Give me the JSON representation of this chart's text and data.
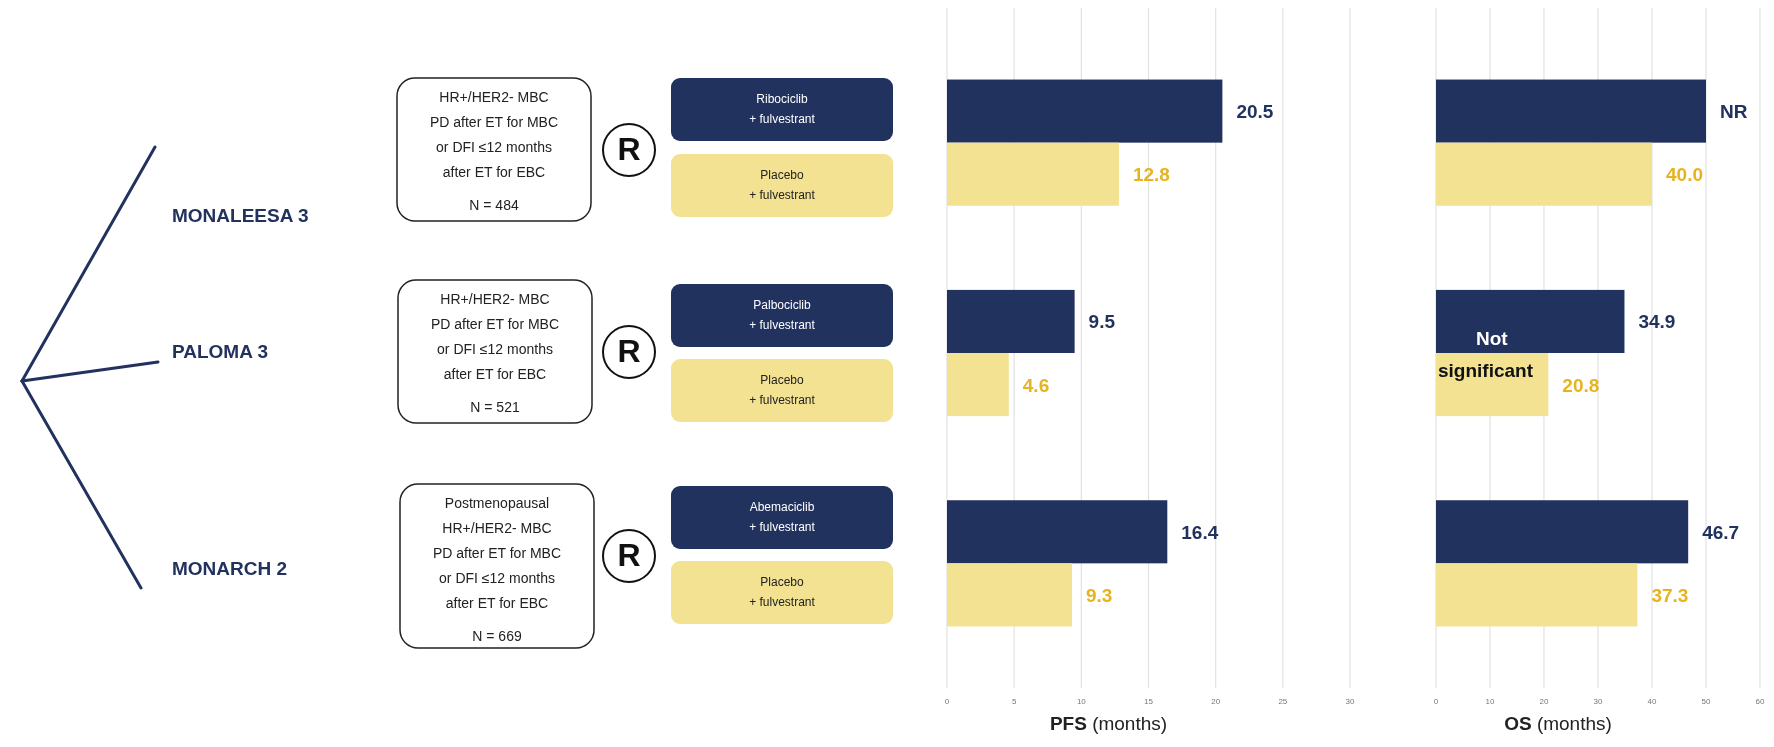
{
  "chart_data": [
    {
      "type": "other",
      "annotations": [
        "MONALEESA 3",
        "PALOMA 3",
        "MONARCH 2",
        "HR+/HER2- MBC\nPD after ET for MBC\nor DFI ≤12 months\nafter ET for EBC\nN = 484",
        "HR+/HER2- MBC\nPD after ET for MBC\nor DFI ≤12 months\nafter ET for EBC\nN = 521",
        "Postmenopausal\nHR+/HER2- MBC\nPD after ET for MBC\nor DFI ≤12 months\nafter ET for EBC\nN = 669",
        "R",
        "R",
        "R",
        "Ribociclib\n+ fulvestrant",
        "Placebo\n+ fulvestrant",
        "Palbociclib\n+ fulvestrant",
        "Placebo\n+ fulvestrant",
        "Abemaciclib\n+ fulvestrant",
        "Placebo\n+ fulvestrant"
      ]
    },
    {
      "type": "bar",
      "orientation": "horizontal",
      "categories": [
        null,
        null,
        null
      ],
      "xlabel": "PFS (months)",
      "xlim": [
        0,
        30
      ],
      "xticks": [
        0,
        5,
        10,
        15,
        20,
        25,
        30
      ],
      "grid": "x",
      "data_labels": true,
      "series": [
        {
          "color": "#22325e",
          "values": [
            20.5,
            9.5,
            16.4
          ]
        },
        {
          "color": "#f2e291",
          "values": [
            12.8,
            4.6,
            9.3
          ]
        }
      ]
    },
    {
      "type": "bar",
      "orientation": "horizontal",
      "categories": [
        null,
        null,
        null
      ],
      "xlabel": "OS (months)",
      "xlim": [
        0,
        60
      ],
      "xticks": [
        0,
        10,
        20,
        30,
        40,
        50,
        60
      ],
      "grid": "x",
      "annotations": [
        "Not significant"
      ],
      "series": [
        {
          "color": "#22325e",
          "values": [
            50,
            34.9,
            46.7
          ],
          "value_labels": [
            "NR",
            "34.9",
            "46.7"
          ]
        },
        {
          "color": "#f2e291",
          "values": [
            40,
            20.8,
            37.3
          ],
          "value_labels": [
            "40.0",
            "20.8",
            "37.3"
          ]
        }
      ]
    }
  ]
}
